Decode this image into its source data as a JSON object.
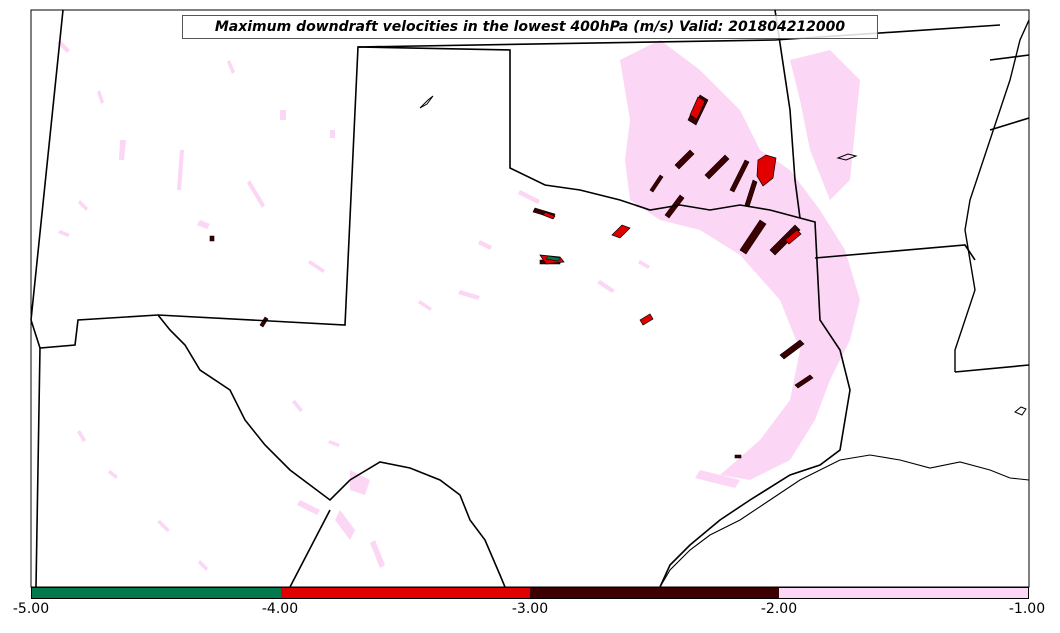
{
  "title": "Maximum downdraft velocities in the lowest 400hPa (m/s) Valid: 201804212000",
  "colorbar": {
    "ticks": [
      "-5.00",
      "-4.00",
      "-3.00",
      "-2.00",
      "-1.00"
    ],
    "bins": [
      {
        "min": -5.0,
        "max": -4.0,
        "color": "#007a4c"
      },
      {
        "min": -4.0,
        "max": -3.0,
        "color": "#e00000"
      },
      {
        "min": -3.0,
        "max": -2.0,
        "color": "#3d0000"
      },
      {
        "min": -2.0,
        "max": -1.0,
        "color": "#fbd6f5"
      }
    ]
  },
  "colors": {
    "light": "#fbd6f5",
    "dark": "#3d0000",
    "red": "#e00000",
    "green": "#007a4c",
    "borders": "#000000"
  }
}
